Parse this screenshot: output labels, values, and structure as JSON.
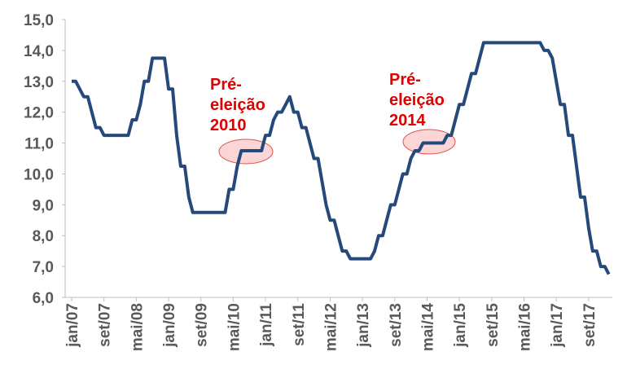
{
  "chart_data": {
    "type": "line",
    "categories": [
      "jan/07",
      null,
      null,
      null,
      null,
      null,
      null,
      null,
      "set/07",
      null,
      null,
      null,
      null,
      null,
      null,
      null,
      "mai/08",
      null,
      null,
      null,
      null,
      null,
      null,
      null,
      "jan/09",
      null,
      null,
      null,
      null,
      null,
      null,
      null,
      "set/09",
      null,
      null,
      null,
      null,
      null,
      null,
      null,
      "mai/10",
      null,
      null,
      null,
      null,
      null,
      null,
      null,
      "jan/11",
      null,
      null,
      null,
      null,
      null,
      null,
      null,
      "set/11",
      null,
      null,
      null,
      null,
      null,
      null,
      null,
      "mai/12",
      null,
      null,
      null,
      null,
      null,
      null,
      null,
      "jan/13",
      null,
      null,
      null,
      null,
      null,
      null,
      null,
      "set/13",
      null,
      null,
      null,
      null,
      null,
      null,
      null,
      "mai/14",
      null,
      null,
      null,
      null,
      null,
      null,
      null,
      "jan/15",
      null,
      null,
      null,
      null,
      null,
      null,
      null,
      "set/15",
      null,
      null,
      null,
      null,
      null,
      null,
      null,
      "mai/16",
      null,
      null,
      null,
      null,
      null,
      null,
      null,
      "jan/17",
      null,
      null,
      null,
      null,
      null,
      null,
      null,
      "set/17",
      null,
      null,
      null,
      null,
      null
    ],
    "values": [
      13,
      13,
      12.75,
      12.5,
      12.5,
      12,
      11.5,
      11.5,
      11.25,
      11.25,
      11.25,
      11.25,
      11.25,
      11.25,
      11.25,
      11.75,
      11.75,
      12.25,
      13,
      13,
      13.75,
      13.75,
      13.75,
      13.75,
      12.75,
      12.75,
      11.25,
      10.25,
      10.25,
      9.25,
      8.75,
      8.75,
      8.75,
      8.75,
      8.75,
      8.75,
      8.75,
      8.75,
      8.75,
      9.5,
      9.5,
      10.25,
      10.75,
      10.75,
      10.75,
      10.75,
      10.75,
      10.75,
      11.25,
      11.25,
      11.75,
      12,
      12,
      12.25,
      12.5,
      12,
      12,
      11.5,
      11.5,
      11,
      10.5,
      10.5,
      9.75,
      9,
      8.5,
      8.5,
      8,
      7.5,
      7.5,
      7.25,
      7.25,
      7.25,
      7.25,
      7.25,
      7.25,
      7.5,
      8,
      8,
      8.5,
      9,
      9,
      9.5,
      10,
      10,
      10.5,
      10.75,
      10.75,
      11,
      11,
      11,
      11,
      11,
      11,
      11.25,
      11.25,
      11.75,
      12.25,
      12.25,
      12.75,
      13.25,
      13.25,
      13.75,
      14.25,
      14.25,
      14.25,
      14.25,
      14.25,
      14.25,
      14.25,
      14.25,
      14.25,
      14.25,
      14.25,
      14.25,
      14.25,
      14.25,
      14.25,
      14,
      14,
      13.75,
      13,
      12.25,
      12.25,
      11.25,
      11.25,
      10.25,
      9.25,
      9.25,
      8.25,
      7.5,
      7.5,
      7,
      7,
      6.75
    ],
    "color": "#24497a",
    "ylim": [
      6,
      15
    ],
    "yticks": [
      {
        "value": 6,
        "label": "6,0"
      },
      {
        "value": 7,
        "label": "7,0"
      },
      {
        "value": 8,
        "label": "8,0"
      },
      {
        "value": 9,
        "label": "9,0"
      },
      {
        "value": 10,
        "label": "10,0"
      },
      {
        "value": 11,
        "label": "11,0"
      },
      {
        "value": 12,
        "label": "12,0"
      },
      {
        "value": 13,
        "label": "13,0"
      },
      {
        "value": 14,
        "label": "14,0"
      },
      {
        "value": 15,
        "label": "15,0"
      }
    ],
    "annotations": [
      {
        "lines": [
          "Pré-",
          "eleição",
          "2010"
        ]
      },
      {
        "lines": [
          "Pré-",
          "eleição",
          "2014"
        ]
      }
    ]
  }
}
